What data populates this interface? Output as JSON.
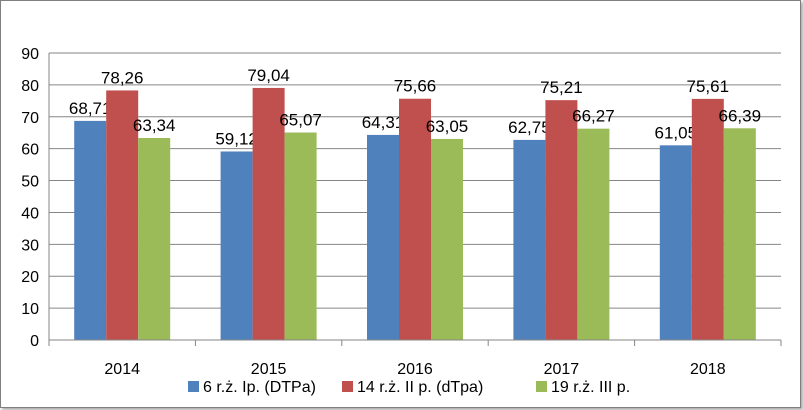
{
  "chart_data": {
    "type": "bar",
    "categories": [
      "2014",
      "2015",
      "2016",
      "2017",
      "2018"
    ],
    "series": [
      {
        "name": "6 r.ż. Ip. (DTPa)",
        "color": "#4f81bd",
        "values": [
          68.71,
          59.12,
          64.31,
          62.75,
          61.05
        ],
        "labels": [
          "68,71",
          "59,12",
          "64,31",
          "62,75",
          "61,05"
        ]
      },
      {
        "name": "14 r.ż. II p. (dTpa)",
        "color": "#c0504d",
        "values": [
          78.26,
          79.04,
          75.66,
          75.21,
          75.61
        ],
        "labels": [
          "78,26",
          "79,04",
          "75,66",
          "75,21",
          "75,61"
        ]
      },
      {
        "name": "19 r.ż. III p.",
        "color": "#9bbb59",
        "values": [
          63.34,
          65.07,
          63.05,
          66.27,
          66.39
        ],
        "labels": [
          "63,34",
          "65,07",
          "63,05",
          "66,27",
          "66,39"
        ]
      }
    ],
    "ylim": [
      0,
      90
    ],
    "yticks": [
      "0",
      "10",
      "20",
      "30",
      "40",
      "50",
      "60",
      "70",
      "80",
      "90"
    ],
    "grid": true,
    "legend_position": "bottom",
    "title": "",
    "xlabel": "",
    "ylabel": ""
  }
}
